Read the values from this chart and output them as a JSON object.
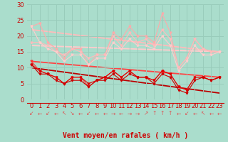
{
  "bg_color": "#aaddcc",
  "grid_color": "#99ccbb",
  "xlabel": "Vent moyen/en rafales ( km/h )",
  "x": [
    0,
    1,
    2,
    3,
    4,
    5,
    6,
    7,
    8,
    9,
    10,
    11,
    12,
    13,
    14,
    15,
    16,
    17,
    18,
    19,
    20,
    21,
    22,
    23
  ],
  "line1_y": [
    23,
    24,
    18,
    16,
    13,
    16,
    16,
    11,
    14,
    14,
    21,
    19,
    23,
    20,
    20,
    18,
    27,
    21,
    10,
    13,
    19,
    16,
    15,
    15
  ],
  "line1_color": "#ffaaaa",
  "line2_y": [
    18,
    18,
    17,
    15,
    14,
    16,
    15,
    13,
    14,
    14,
    20,
    17,
    21,
    18,
    19,
    17,
    22,
    19,
    10,
    13,
    19,
    16,
    15,
    15
  ],
  "line2_color": "#ffbbbb",
  "line3_y": [
    23,
    18,
    16,
    15,
    12,
    14,
    14,
    11,
    13,
    13,
    18,
    16,
    19,
    17,
    17,
    16,
    20,
    17,
    9,
    12,
    17,
    14,
    14,
    15
  ],
  "line3_color": "#ffcccc",
  "line4_y": [
    12,
    9,
    8,
    7,
    5,
    7,
    7,
    4,
    6,
    7,
    9,
    7,
    9,
    7,
    7,
    6,
    9,
    8,
    4,
    3,
    7,
    7,
    6,
    7
  ],
  "line4_color": "#ff3333",
  "line5_y": [
    11,
    9,
    8,
    7,
    5,
    7,
    7,
    5,
    6,
    7,
    9,
    7,
    9,
    7,
    7,
    6,
    9,
    8,
    4,
    3,
    7,
    7,
    6,
    7
  ],
  "line5_color": "#dd0000",
  "line6_y": [
    11,
    8,
    8,
    6,
    5,
    6,
    6,
    4,
    6,
    6,
    8,
    6,
    8,
    7,
    7,
    5,
    8,
    7,
    3,
    2,
    6,
    7,
    6,
    7
  ],
  "line6_color": "#cc0000",
  "trend1_x": [
    0,
    23
  ],
  "trend1_y": [
    22,
    15
  ],
  "trend1_color": "#ffbbbb",
  "trend2_x": [
    0,
    23
  ],
  "trend2_y": [
    17,
    15
  ],
  "trend2_color": "#ffcccc",
  "trend3_x": [
    0,
    23
  ],
  "trend3_y": [
    12,
    7
  ],
  "trend3_color": "#ff4444",
  "trend4_x": [
    0,
    23
  ],
  "trend4_y": [
    10,
    2
  ],
  "trend4_color": "#bb0000",
  "ylim": [
    0,
    30
  ],
  "xlim": [
    -0.5,
    23.5
  ],
  "yticks": [
    0,
    5,
    10,
    15,
    20,
    25,
    30
  ],
  "tick_fontsize": 6,
  "label_fontsize": 7,
  "marker_size": 2.0,
  "lw": 0.8,
  "arrow_color": "#dd5555",
  "arrow_seq": [
    "↙",
    "←",
    "↙",
    "←",
    "↖",
    "↘",
    "←",
    "↙",
    "←",
    "←",
    "→",
    "←",
    "→",
    "→",
    "↗",
    "↑",
    "↑",
    "↑",
    "←",
    "↙",
    "←",
    "↖",
    "←",
    "←"
  ]
}
